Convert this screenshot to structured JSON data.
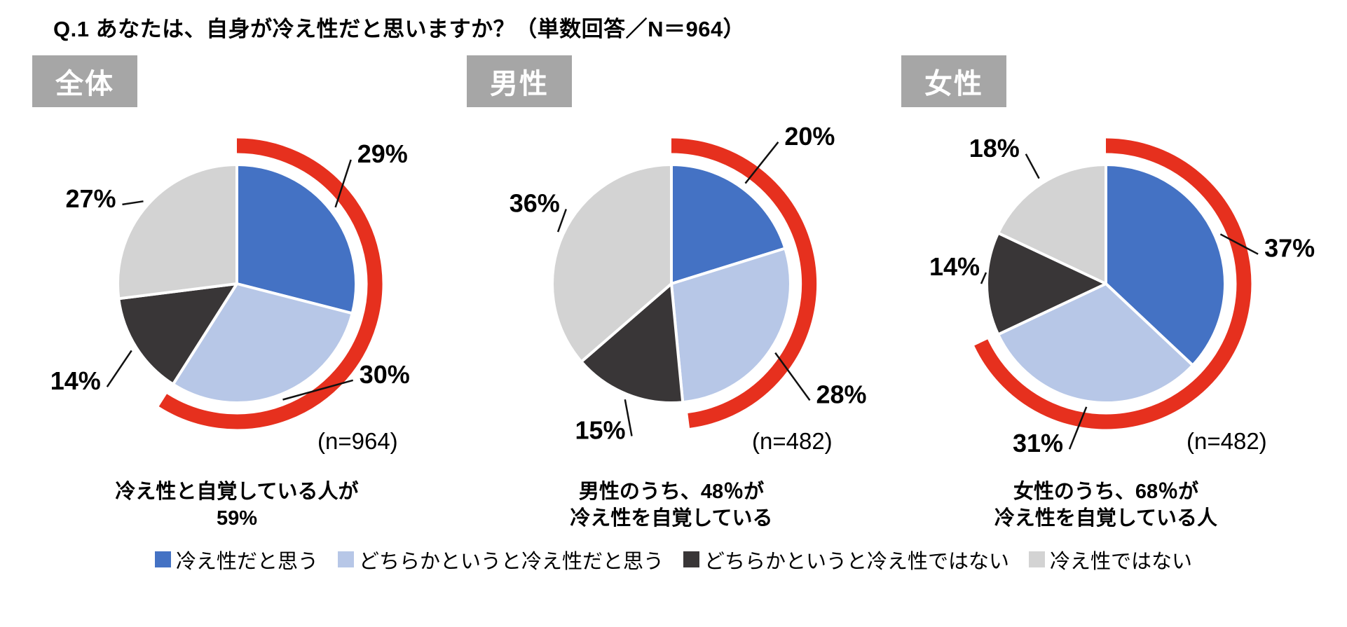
{
  "title": "Q.1 あなたは、自身が冷え性だと思いますか？（単数回答／N＝964）",
  "colors": {
    "think_cold": "#4472C4",
    "somewhat_cold": "#B7C7E7",
    "somewhat_not_cold": "#393637",
    "not_cold": "#D3D3D3",
    "highlight_arc": "#E6301E",
    "group_label_bg": "#A6A6A6",
    "slice_divider": "#FFFFFF"
  },
  "legend": [
    {
      "label": "冷え性だと思う",
      "color": "#4472C4"
    },
    {
      "label": "どちらかというと冷え性だと思う",
      "color": "#B7C7E7"
    },
    {
      "label": "どちらかというと冷え性ではない",
      "color": "#393637"
    },
    {
      "label": "冷え性ではない",
      "color": "#D3D3D3"
    }
  ],
  "chart_data": [
    {
      "type": "pie",
      "group_label": "全体",
      "n_label": "(n=964)",
      "categories": [
        "冷え性だと思う",
        "どちらかというと冷え性だと思う",
        "どちらかというと冷え性ではない",
        "冷え性ではない"
      ],
      "values": [
        29,
        30,
        14,
        27
      ],
      "value_labels": [
        "29%",
        "30%",
        "14%",
        "27%"
      ],
      "start_angle_deg": 0,
      "direction": "clockwise",
      "highlight_percent": 59,
      "caption_line1": "冷え性と自覚している人が",
      "caption_line2": "59%"
    },
    {
      "type": "pie",
      "group_label": "男性",
      "n_label": "(n=482)",
      "categories": [
        "冷え性だと思う",
        "どちらかというと冷え性だと思う",
        "どちらかというと冷え性ではない",
        "冷え性ではない"
      ],
      "values": [
        20,
        28,
        15,
        36
      ],
      "value_labels": [
        "20%",
        "28%",
        "15%",
        "36%"
      ],
      "start_angle_deg": 0,
      "direction": "clockwise",
      "highlight_percent": 48,
      "caption_line1": "男性のうち、48％が",
      "caption_line2": "冷え性を自覚している"
    },
    {
      "type": "pie",
      "group_label": "女性",
      "n_label": "(n=482)",
      "categories": [
        "冷え性だと思う",
        "どちらかというと冷え性だと思う",
        "どちらかというと冷え性ではない",
        "冷え性ではない"
      ],
      "values": [
        37,
        31,
        14,
        18
      ],
      "value_labels": [
        "37%",
        "31%",
        "14%",
        "18%"
      ],
      "start_angle_deg": 0,
      "direction": "clockwise",
      "highlight_percent": 68,
      "caption_line1": "女性のうち、68％が",
      "caption_line2": "冷え性を自覚している人"
    }
  ]
}
